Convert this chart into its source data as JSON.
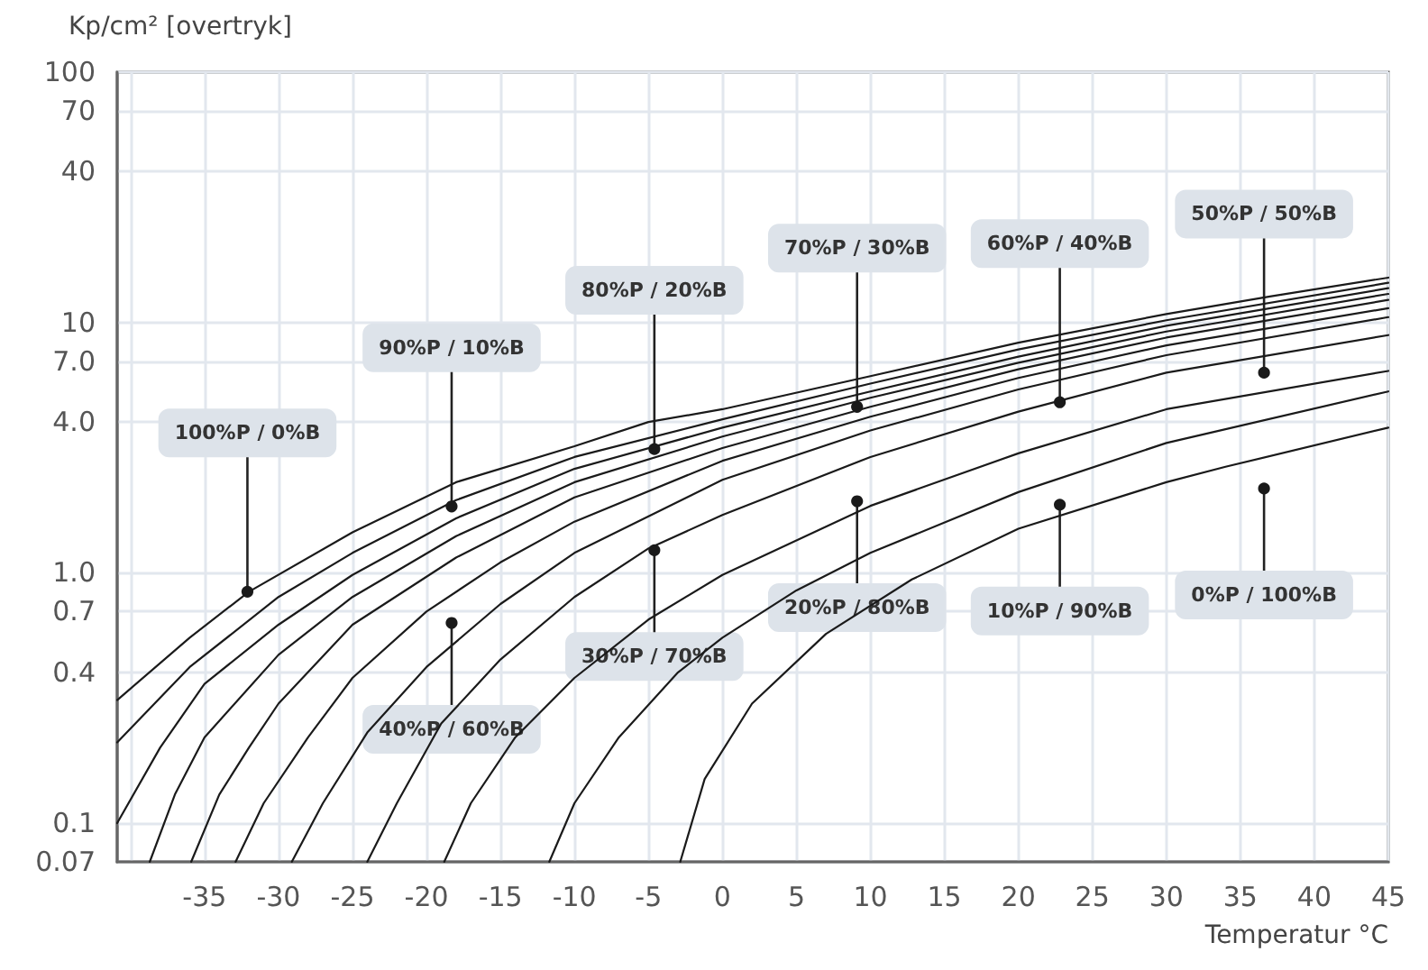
{
  "chart_data": {
    "type": "line",
    "xlabel": "Temperatur °C",
    "ylabel": "Kp/cm² [overtryk]",
    "xlim": [
      -40.9,
      45
    ],
    "xticks": [
      {
        "value": -40,
        "label": null
      },
      -35,
      -30,
      -25,
      -20,
      -15,
      -10,
      -5,
      0,
      5,
      10,
      15,
      20,
      25,
      30,
      35,
      40,
      45
    ],
    "ylim": [
      0.07,
      100
    ],
    "yticks": [
      0.07,
      0.1,
      0.4,
      0.7,
      {
        "value": 1,
        "label": "1.0"
      },
      {
        "value": 4,
        "label": "4.0"
      },
      {
        "value": 7,
        "label": "7.0"
      },
      10,
      40,
      70,
      100
    ],
    "log": "y",
    "grid": true,
    "marker": "none",
    "line_style": "solid",
    "series": [
      {
        "color": "#1a1a1a",
        "x": [
          -40.9,
          -36,
          -32,
          -25,
          -18,
          -10,
          -5,
          0,
          10,
          20,
          30,
          37,
          45
        ],
        "values": [
          0.31,
          0.55,
          0.84,
          1.45,
          2.3,
          3.2,
          4.0,
          4.5,
          6.1,
          8.3,
          10.8,
          12.7,
          15.1
        ]
      },
      {
        "color": "#1a1a1a",
        "x": [
          -40.9,
          -36,
          -30,
          -25,
          -18,
          -10,
          0,
          10,
          20,
          30,
          45
        ],
        "values": [
          0.21,
          0.42,
          0.8,
          1.2,
          1.95,
          2.9,
          4.1,
          5.7,
          7.8,
          10.2,
          14.4
        ]
      },
      {
        "color": "#1a1a1a",
        "x": [
          -40.9,
          -38,
          -35,
          -30,
          -25,
          -18,
          -10,
          0,
          10,
          20,
          30,
          45
        ],
        "values": [
          0.1,
          0.2,
          0.36,
          0.62,
          0.98,
          1.65,
          2.6,
          3.8,
          5.3,
          7.3,
          9.7,
          13.7
        ]
      },
      {
        "color": "#1a1a1a",
        "x": [
          -38.7,
          -37,
          -35,
          -30,
          -25,
          -18,
          -10,
          0,
          10,
          20,
          30,
          45
        ],
        "values": [
          0.07,
          0.13,
          0.22,
          0.47,
          0.8,
          1.4,
          2.3,
          3.5,
          5.0,
          6.9,
          9.2,
          13.0
        ]
      },
      {
        "color": "#1a1a1a",
        "x": [
          -35.9,
          -34,
          -32,
          -30,
          -25,
          -18,
          -10,
          0,
          10,
          20,
          30,
          45
        ],
        "values": [
          0.07,
          0.13,
          0.2,
          0.3,
          0.62,
          1.15,
          2.0,
          3.15,
          4.6,
          6.5,
          8.7,
          12.3
        ]
      },
      {
        "color": "#1a1a1a",
        "x": [
          -32.9,
          -31,
          -28,
          -25,
          -20,
          -15,
          -10,
          0,
          10,
          20,
          30,
          45
        ],
        "values": [
          0.07,
          0.12,
          0.22,
          0.38,
          0.7,
          1.1,
          1.6,
          2.8,
          4.2,
          6.0,
          8.1,
          11.4
        ]
      },
      {
        "color": "#1a1a1a",
        "x": [
          -29.1,
          -27,
          -24,
          -20,
          -15,
          -10,
          0,
          10,
          20,
          30,
          45
        ],
        "values": [
          0.07,
          0.12,
          0.23,
          0.42,
          0.75,
          1.2,
          2.35,
          3.7,
          5.4,
          7.4,
          10.5
        ]
      },
      {
        "color": "#1a1a1a",
        "x": [
          -24,
          -22,
          -19,
          -15,
          -10,
          -5,
          0,
          10,
          20,
          30,
          45
        ],
        "values": [
          0.07,
          0.12,
          0.25,
          0.45,
          0.8,
          1.25,
          1.7,
          2.9,
          4.4,
          6.3,
          8.9
        ]
      },
      {
        "color": "#1a1a1a",
        "x": [
          -18.8,
          -17,
          -14,
          -10,
          -5,
          0,
          10,
          20,
          30,
          45
        ],
        "values": [
          0.07,
          0.12,
          0.22,
          0.38,
          0.65,
          0.98,
          1.85,
          3.0,
          4.5,
          6.4
        ]
      },
      {
        "color": "#1a1a1a",
        "x": [
          -11.7,
          -10,
          -7,
          -3,
          0,
          5,
          10,
          20,
          30,
          45
        ],
        "values": [
          0.07,
          0.12,
          0.22,
          0.4,
          0.55,
          0.85,
          1.2,
          2.1,
          3.3,
          5.3
        ]
      },
      {
        "color": "#1a1a1a",
        "x": [
          -2.85,
          -1.2,
          2,
          7,
          12.8,
          20,
          30,
          34,
          45
        ],
        "values": [
          0.07,
          0.15,
          0.3,
          0.57,
          0.94,
          1.5,
          2.3,
          2.65,
          3.8
        ]
      }
    ],
    "annotations": [
      {
        "text": "100%P / 0%B",
        "x": -32.1,
        "y": 0.84
      },
      {
        "text": "90%P / 10%B",
        "x": -18.3,
        "y": 1.84
      },
      {
        "text": "80%P / 20%B",
        "x": -4.6,
        "y": 3.12
      },
      {
        "text": "70%P / 30%B",
        "x": 9.1,
        "y": 4.6
      },
      {
        "text": "60%P / 40%B",
        "x": 22.8,
        "y": 4.8
      },
      {
        "text": "50%P / 50%B",
        "x": 36.6,
        "y": 6.3
      },
      {
        "text": "40%P / 60%B",
        "x": -18.3,
        "y": 0.63
      },
      {
        "text": "30%P / 70%B",
        "x": -4.6,
        "y": 1.23
      },
      {
        "text": "20%P / 80%B",
        "x": 9.1,
        "y": 1.93
      },
      {
        "text": "10%P / 90%B",
        "x": 22.8,
        "y": 1.87
      },
      {
        "text": "0%P / 100%B",
        "x": 36.6,
        "y": 2.17
      }
    ]
  }
}
